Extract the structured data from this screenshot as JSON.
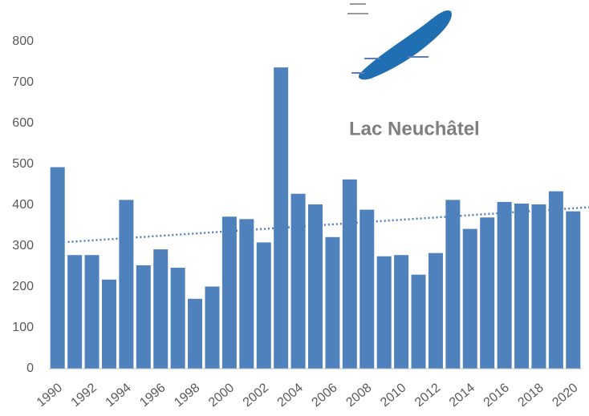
{
  "chart_data": {
    "type": "bar",
    "annotation": "Lac Neuchâtel",
    "categories": [
      "1990",
      null,
      "1992",
      null,
      "1994",
      null,
      "1996",
      null,
      "1998",
      null,
      "2000",
      null,
      "2002",
      null,
      "2004",
      null,
      "2006",
      null,
      "2008",
      null,
      "2010",
      null,
      "2012",
      null,
      "2014",
      null,
      "2016",
      null,
      "2018",
      null,
      "2020"
    ],
    "values": [
      493,
      278,
      278,
      218,
      413,
      253,
      292,
      247,
      171,
      201,
      372,
      366,
      309,
      737,
      428,
      402,
      322,
      463,
      389,
      275,
      278,
      230,
      283,
      413,
      342,
      370,
      408,
      404,
      402,
      434,
      385
    ],
    "color": "#4f81bd",
    "trendline": {
      "start": 310,
      "end": 395,
      "color": "#4f81bd"
    },
    "ylim": [
      0,
      800
    ],
    "yticks": [
      0,
      100,
      200,
      300,
      400,
      500,
      600,
      700,
      800
    ],
    "grid": false
  }
}
